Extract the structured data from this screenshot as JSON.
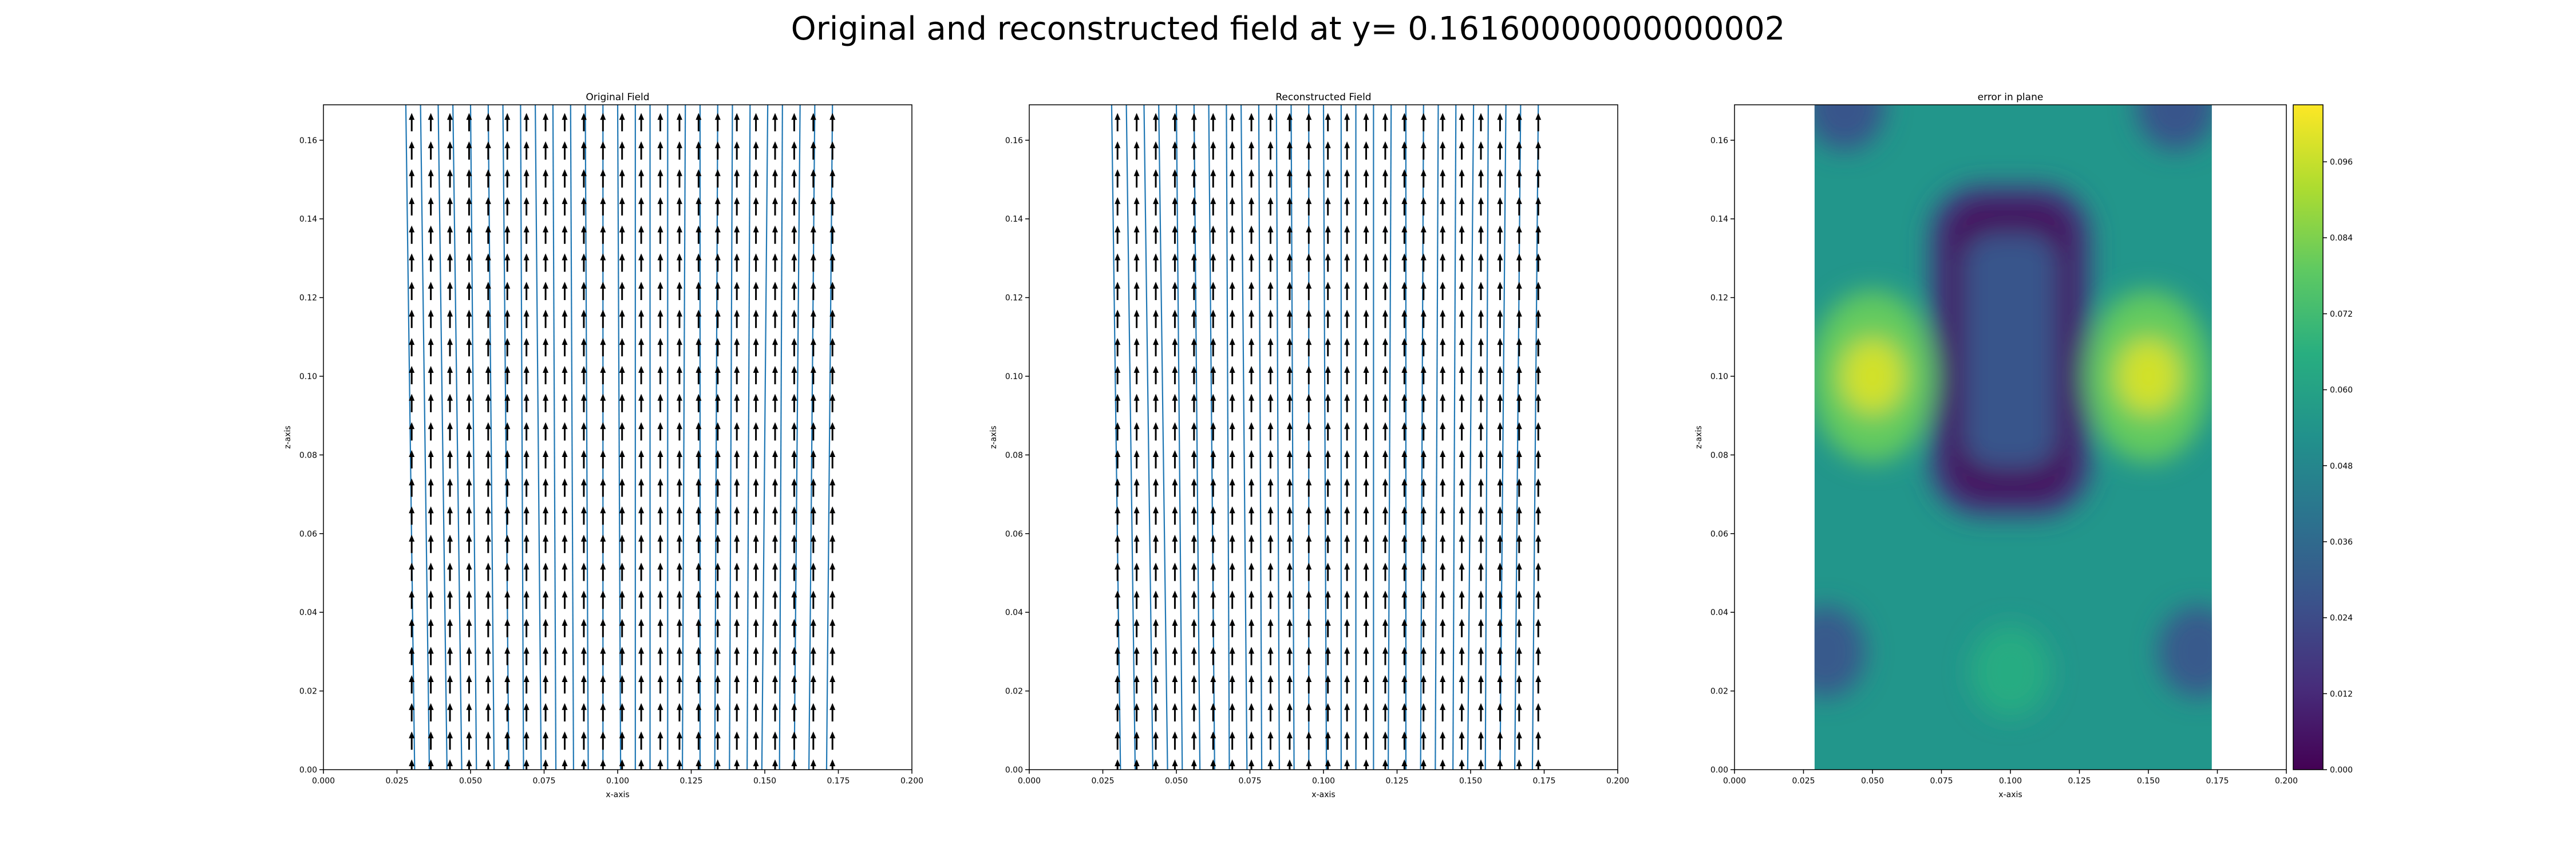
{
  "figure_title": "Original and reconstructed field at y= 0.16160000000000002",
  "chart_data": [
    {
      "type": "quiver",
      "title": "Original Field",
      "xlabel": "x-axis",
      "ylabel": "z-axis",
      "xlim": [
        0.0,
        0.2
      ],
      "ylim": [
        0.0,
        0.169
      ],
      "xticks": [
        "0.000",
        "0.025",
        "0.050",
        "0.075",
        "0.100",
        "0.125",
        "0.150",
        "0.175",
        "0.200"
      ],
      "yticks": [
        "0.00",
        "0.02",
        "0.04",
        "0.06",
        "0.08",
        "0.10",
        "0.12",
        "0.14",
        "0.16"
      ],
      "grid": false,
      "arrow_grid": {
        "x": [
          0.03,
          0.0365,
          0.043,
          0.0495,
          0.056,
          0.0625,
          0.069,
          0.0755,
          0.082,
          0.0885,
          0.095,
          0.1015,
          0.108,
          0.1145,
          0.121,
          0.1275,
          0.134,
          0.1405,
          0.147,
          0.1535,
          0.16,
          0.1665,
          0.173
        ],
        "z": [
          0.0,
          0.0071,
          0.0143,
          0.0214,
          0.0286,
          0.0357,
          0.0429,
          0.05,
          0.0571,
          0.0643,
          0.0714,
          0.0786,
          0.0857,
          0.0929,
          0.1,
          0.1071,
          0.1143,
          0.1214,
          0.1286,
          0.1357,
          0.1429,
          0.15,
          0.1571,
          0.1643
        ],
        "direction": "+z"
      },
      "field_lines": {
        "color": "#1f77b4",
        "x_at_bottom": [
          0.031,
          0.036,
          0.042,
          0.047,
          0.052,
          0.058,
          0.063,
          0.068,
          0.074,
          0.079,
          0.085,
          0.09,
          0.095,
          0.101,
          0.106,
          0.111,
          0.117,
          0.122,
          0.128,
          0.133,
          0.138,
          0.144,
          0.149,
          0.155,
          0.16,
          0.165,
          0.171
        ],
        "x_at_top": [
          0.028,
          0.033,
          0.039,
          0.044,
          0.05,
          0.056,
          0.061,
          0.067,
          0.072,
          0.078,
          0.084,
          0.089,
          0.095,
          0.1,
          0.106,
          0.111,
          0.117,
          0.123,
          0.128,
          0.134,
          0.139,
          0.145,
          0.151,
          0.156,
          0.162,
          0.167,
          0.173
        ]
      }
    },
    {
      "type": "quiver",
      "title": "Reconstructed Field",
      "xlabel": "x-axis",
      "ylabel": "z-axis",
      "xlim": [
        0.0,
        0.2
      ],
      "ylim": [
        0.0,
        0.169
      ],
      "xticks": [
        "0.000",
        "0.025",
        "0.050",
        "0.075",
        "0.100",
        "0.125",
        "0.150",
        "0.175",
        "0.200"
      ],
      "yticks": [
        "0.00",
        "0.02",
        "0.04",
        "0.06",
        "0.08",
        "0.10",
        "0.12",
        "0.14",
        "0.16"
      ],
      "grid": false,
      "arrow_grid": {
        "x": [
          0.03,
          0.0365,
          0.043,
          0.0495,
          0.056,
          0.0625,
          0.069,
          0.0755,
          0.082,
          0.0885,
          0.095,
          0.1015,
          0.108,
          0.1145,
          0.121,
          0.1275,
          0.134,
          0.1405,
          0.147,
          0.1535,
          0.16,
          0.1665,
          0.173
        ],
        "z": [
          0.0,
          0.0071,
          0.0143,
          0.0214,
          0.0286,
          0.0357,
          0.0429,
          0.05,
          0.0571,
          0.0643,
          0.0714,
          0.0786,
          0.0857,
          0.0929,
          0.1,
          0.1071,
          0.1143,
          0.1214,
          0.1286,
          0.1357,
          0.1429,
          0.15,
          0.1571,
          0.1643
        ],
        "direction": "+z"
      },
      "field_lines": {
        "color": "#1f77b4",
        "x_at_bottom": [
          0.031,
          0.036,
          0.042,
          0.047,
          0.052,
          0.058,
          0.063,
          0.068,
          0.074,
          0.079,
          0.085,
          0.09,
          0.095,
          0.101,
          0.106,
          0.111,
          0.117,
          0.122,
          0.128,
          0.133,
          0.138,
          0.144,
          0.149,
          0.155,
          0.16,
          0.165,
          0.171
        ],
        "x_at_top": [
          0.028,
          0.033,
          0.039,
          0.044,
          0.05,
          0.056,
          0.061,
          0.067,
          0.072,
          0.078,
          0.084,
          0.089,
          0.095,
          0.1,
          0.106,
          0.111,
          0.117,
          0.123,
          0.128,
          0.134,
          0.139,
          0.145,
          0.151,
          0.156,
          0.162,
          0.167,
          0.173
        ]
      }
    },
    {
      "type": "heatmap",
      "title": "error in plane",
      "xlabel": "x-axis",
      "ylabel": "z-axis",
      "xlim": [
        0.0,
        0.2
      ],
      "ylim": [
        0.0,
        0.169
      ],
      "xticks": [
        "0.000",
        "0.025",
        "0.050",
        "0.075",
        "0.100",
        "0.125",
        "0.150",
        "0.175",
        "0.200"
      ],
      "yticks": [
        "0.00",
        "0.02",
        "0.04",
        "0.06",
        "0.08",
        "0.10",
        "0.12",
        "0.14",
        "0.16"
      ],
      "data_extent": {
        "x": [
          0.029,
          0.173
        ],
        "z": [
          0.0,
          0.169
        ]
      },
      "colormap": "viridis",
      "colorbar": {
        "ticks": [
          "0.000",
          "0.012",
          "0.024",
          "0.036",
          "0.048",
          "0.060",
          "0.072",
          "0.084",
          "0.096"
        ],
        "range": [
          0.0,
          0.105
        ],
        "location": "right"
      },
      "features": [
        {
          "label": "central low-error region",
          "x_range": [
            0.076,
            0.124
          ],
          "z_range": [
            0.068,
            0.145
          ],
          "value": 0.003
        },
        {
          "label": "left hot spot",
          "x": 0.05,
          "z": 0.1,
          "value": 0.098
        },
        {
          "label": "right hot spot",
          "x": 0.15,
          "z": 0.1,
          "value": 0.098
        },
        {
          "label": "lower-left low corner",
          "x": 0.033,
          "z": 0.03,
          "value": 0.03
        },
        {
          "label": "lower-right low corner",
          "x": 0.168,
          "z": 0.03,
          "value": 0.03
        },
        {
          "label": "top-left low corner",
          "x": 0.04,
          "z": 0.169,
          "value": 0.028
        },
        {
          "label": "top-right low corner",
          "x": 0.16,
          "z": 0.169,
          "value": 0.028
        },
        {
          "label": "bottom center",
          "x": 0.1,
          "z": 0.025,
          "value": 0.065
        },
        {
          "label": "background",
          "value": 0.055
        }
      ]
    }
  ],
  "colors": {
    "arrow": "#000000",
    "field_line": "#1f77b4",
    "axes": "#000000"
  }
}
